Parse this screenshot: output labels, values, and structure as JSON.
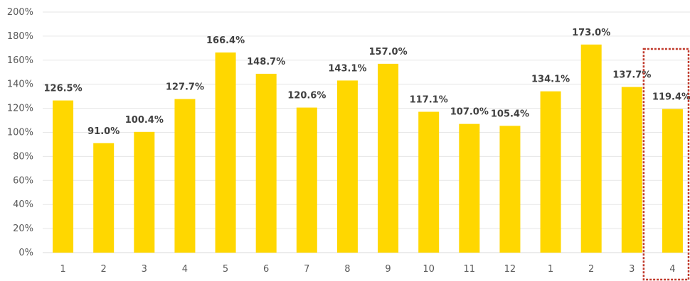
{
  "chart_data": {
    "type": "bar",
    "categories": [
      "1",
      "2",
      "3",
      "4",
      "5",
      "6",
      "7",
      "8",
      "9",
      "10",
      "11",
      "12",
      "1",
      "2",
      "3",
      "4"
    ],
    "values": [
      126.5,
      91.0,
      100.4,
      127.7,
      166.4,
      148.7,
      120.6,
      143.1,
      157.0,
      117.1,
      107.0,
      105.4,
      134.1,
      173.0,
      137.7,
      119.4
    ],
    "value_labels": [
      "126.5%",
      "91.0%",
      "100.4%",
      "127.7%",
      "166.4%",
      "148.7%",
      "120.6%",
      "143.1%",
      "157.0%",
      "117.1%",
      "107.0%",
      "105.4%",
      "134.1%",
      "173.0%",
      "137.7%",
      "119.4%"
    ],
    "y_tick_values": [
      0,
      20,
      40,
      60,
      80,
      100,
      120,
      140,
      160,
      180,
      200
    ],
    "y_ticks": [
      "0%",
      "20%",
      "40%",
      "60%",
      "80%",
      "100%",
      "120%",
      "140%",
      "160%",
      "180%",
      "200%"
    ],
    "ylim": [
      0,
      200
    ],
    "title": "",
    "xlabel": "",
    "ylabel": "",
    "grid": true,
    "legend": false,
    "bar_color": "#FFD700",
    "highlighted_category_index": 15,
    "highlight_color": "#C0392B"
  }
}
